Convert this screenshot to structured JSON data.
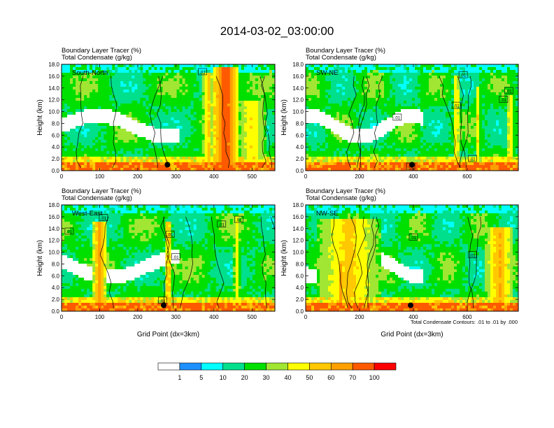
{
  "figure": {
    "title": "2014-03-02_03:00:00",
    "contour_note": "Total Condensate Contours: .01 to .01 by .000"
  },
  "chart_data": [
    {
      "type": "heatmap",
      "panel_label": "South-North",
      "header_lines": [
        "Boundary Layer Tracer    (%)",
        "Total Condensate    (g/kg)"
      ],
      "ylabel": "Height (km)",
      "xlabel": "",
      "xlim": [
        0,
        560
      ],
      "ylim": [
        0.0,
        18.0
      ],
      "x_ticks": [
        0,
        100,
        200,
        300,
        400,
        500
      ],
      "y_ticks": [
        "0.0",
        "2.0",
        "4.0",
        "6.0",
        "8.0",
        "10.0",
        "12.0",
        "14.0",
        "16.0",
        "18.0"
      ],
      "contour_labels": [
        {
          "text": ".01",
          "x": 370,
          "y": 16.7
        }
      ],
      "marker": {
        "x": 278,
        "y": 1.0
      },
      "plume_centers": [
        {
          "x": 430,
          "w": 35,
          "top": 17.5,
          "level": 82
        },
        {
          "x": 385,
          "w": 15,
          "top": 16.5,
          "level": 55
        },
        {
          "x": 500,
          "w": 40,
          "top": 12,
          "level": 50
        }
      ]
    },
    {
      "type": "heatmap",
      "panel_label": "SW-NE",
      "header_lines": [
        "Boundary Layer Tracer    (%)",
        "Total Condensate    (g/kg)"
      ],
      "ylabel": "Height (km)",
      "xlabel": "",
      "xlim": [
        0,
        790
      ],
      "ylim": [
        0.0,
        18.0
      ],
      "x_ticks": [
        0,
        200,
        400,
        600
      ],
      "y_ticks": [
        "0.0",
        "2.0",
        "4.0",
        "6.0",
        "8.0",
        "10.0",
        "12.0",
        "14.0",
        "16.0",
        "18.0"
      ],
      "contour_labels": [
        {
          "text": ".01",
          "x": 585,
          "y": 16.2
        },
        {
          "text": ".01",
          "x": 340,
          "y": 9.0
        },
        {
          "text": ".01",
          "x": 560,
          "y": 11.0
        },
        {
          "text": ".01",
          "x": 735,
          "y": 12.0
        },
        {
          "text": ".01",
          "x": 755,
          "y": 13.5
        },
        {
          "text": ".01",
          "x": 620,
          "y": 2.0
        },
        {
          "text": ".01",
          "x": 390,
          "y": 0.7
        }
      ],
      "marker": {
        "x": 395,
        "y": 1.0
      },
      "plume_centers": [
        {
          "x": 560,
          "w": 12,
          "top": 16,
          "level": 55
        },
        {
          "x": 640,
          "w": 10,
          "top": 14,
          "level": 50
        },
        {
          "x": 760,
          "w": 15,
          "top": 13,
          "level": 50
        }
      ]
    },
    {
      "type": "heatmap",
      "panel_label": "West-East",
      "header_lines": [
        "Boundary Layer Tracer    (%)",
        "Total Condensate    (g/kg)"
      ],
      "ylabel": "Height (km)",
      "xlabel": "Grid Point (dx=3km)",
      "xlim": [
        0,
        560
      ],
      "ylim": [
        0.0,
        18.0
      ],
      "x_ticks": [
        0,
        100,
        200,
        300,
        400,
        500
      ],
      "y_ticks": [
        "0.0",
        "2.0",
        "4.0",
        "6.0",
        "8.0",
        "10.0",
        "12.0",
        "14.0",
        "16.0",
        "18.0"
      ],
      "contour_labels": [
        {
          "text": ".01",
          "x": 110,
          "y": 15.8
        },
        {
          "text": ".01",
          "x": 20,
          "y": 13.5
        },
        {
          "text": ".01",
          "x": 285,
          "y": 13.0
        },
        {
          "text": ".01",
          "x": 300,
          "y": 9.2
        },
        {
          "text": ".01",
          "x": 420,
          "y": 14.7
        },
        {
          "text": ".01",
          "x": 465,
          "y": 15.5
        },
        {
          "text": ".01",
          "x": 265,
          "y": 1.8
        }
      ],
      "marker": {
        "x": 268,
        "y": 1.0
      },
      "plume_centers": [
        {
          "x": 100,
          "w": 20,
          "top": 15,
          "level": 65
        },
        {
          "x": 280,
          "w": 10,
          "top": 15,
          "level": 62
        },
        {
          "x": 460,
          "w": 10,
          "top": 16,
          "level": 45
        }
      ]
    },
    {
      "type": "heatmap",
      "panel_label": "NW-SE",
      "header_lines": [
        "Boundary Layer Tracer    (%)",
        "Total Condensate    (g/kg)"
      ],
      "ylabel": "Height (km)",
      "xlabel": "Grid Point (dx=3km)",
      "xlim": [
        0,
        790
      ],
      "ylim": [
        0.0,
        18.0
      ],
      "x_ticks": [
        0,
        200,
        400,
        600
      ],
      "y_ticks": [
        "0.0",
        "2.0",
        "4.0",
        "6.0",
        "8.0",
        "10.0",
        "12.0",
        "14.0",
        "16.0",
        "18.0"
      ],
      "contour_labels": [
        {
          "text": ".01",
          "x": 400,
          "y": 12.5
        },
        {
          "text": ".01",
          "x": 620,
          "y": 9.5
        }
      ],
      "marker": {
        "x": 390,
        "y": 1.0
      },
      "plume_centers": [
        {
          "x": 130,
          "w": 15,
          "top": 8,
          "level": 65
        },
        {
          "x": 720,
          "w": 50,
          "top": 14,
          "level": 62
        },
        {
          "x": 160,
          "w": 120,
          "top": 15.5,
          "level": 55
        }
      ]
    }
  ],
  "colorbar": {
    "levels": [
      "1",
      "5",
      "10",
      "20",
      "30",
      "40",
      "50",
      "60",
      "70",
      "100"
    ],
    "colors": [
      "#ffffff",
      "#1e90ff",
      "#00ffff",
      "#00e08c",
      "#00e000",
      "#a0e632",
      "#ffff00",
      "#ffc800",
      "#ffa000",
      "#ff5a00",
      "#ff0000"
    ]
  }
}
